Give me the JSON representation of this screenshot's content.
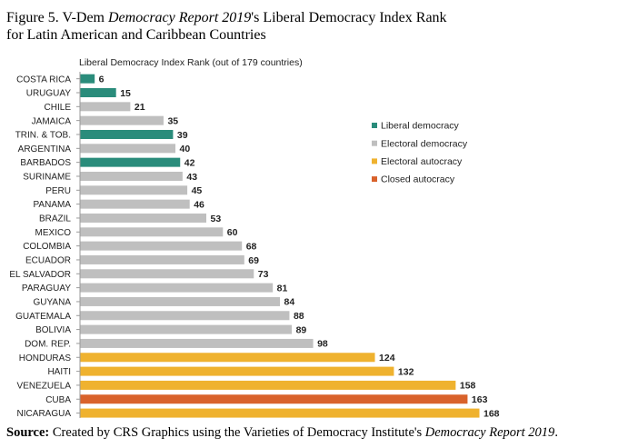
{
  "figure": {
    "title_prefix": "Figure 5. V-Dem ",
    "title_italic": "Democracy Report 2019",
    "title_suffix": "'s Liberal Democracy Index Rank",
    "title_line2": "for Latin American and Caribbean Countries",
    "source_label": "Source:",
    "source_text": " Created by CRS Graphics using the Varieties of Democracy Institute's ",
    "source_italic": "Democracy Report 2019",
    "source_end": "."
  },
  "colors": {
    "Liberal democracy": "#2a8c7b",
    "Electoral democracy": "#bfbfbf",
    "Electoral autocracy": "#efb22f",
    "Closed autocracy": "#d9622b"
  },
  "chart_data": {
    "type": "bar",
    "orientation": "horizontal",
    "title": "Liberal Democracy Index Rank (out of 179 countries)",
    "xlim": [
      0,
      179
    ],
    "grid": false,
    "legend_position": "right",
    "legend": [
      "Liberal democracy",
      "Electoral democracy",
      "Electoral autocracy",
      "Closed autocracy"
    ],
    "categories": [
      "COSTA RICA",
      "URUGUAY",
      "CHILE",
      "JAMAICA",
      "TRIN. & TOB.",
      "ARGENTINA",
      "BARBADOS",
      "SURINAME",
      "PERU",
      "PANAMA",
      "BRAZIL",
      "MEXICO",
      "COLOMBIA",
      "ECUADOR",
      "EL SALVADOR",
      "PARAGUAY",
      "GUYANA",
      "GUATEMALA",
      "BOLIVIA",
      "DOM. REP.",
      "HONDURAS",
      "HAITI",
      "VENEZUELA",
      "CUBA",
      "NICARAGUA"
    ],
    "values": [
      6,
      15,
      21,
      35,
      39,
      40,
      42,
      43,
      45,
      46,
      53,
      60,
      68,
      69,
      73,
      81,
      84,
      88,
      89,
      98,
      124,
      132,
      158,
      163,
      168
    ],
    "groups": [
      "Liberal democracy",
      "Liberal democracy",
      "Electoral democracy",
      "Electoral democracy",
      "Liberal democracy",
      "Electoral democracy",
      "Liberal democracy",
      "Electoral democracy",
      "Electoral democracy",
      "Electoral democracy",
      "Electoral democracy",
      "Electoral democracy",
      "Electoral democracy",
      "Electoral democracy",
      "Electoral democracy",
      "Electoral democracy",
      "Electoral democracy",
      "Electoral democracy",
      "Electoral democracy",
      "Electoral democracy",
      "Electoral autocracy",
      "Electoral autocracy",
      "Electoral autocracy",
      "Closed autocracy",
      "Electoral autocracy"
    ]
  }
}
